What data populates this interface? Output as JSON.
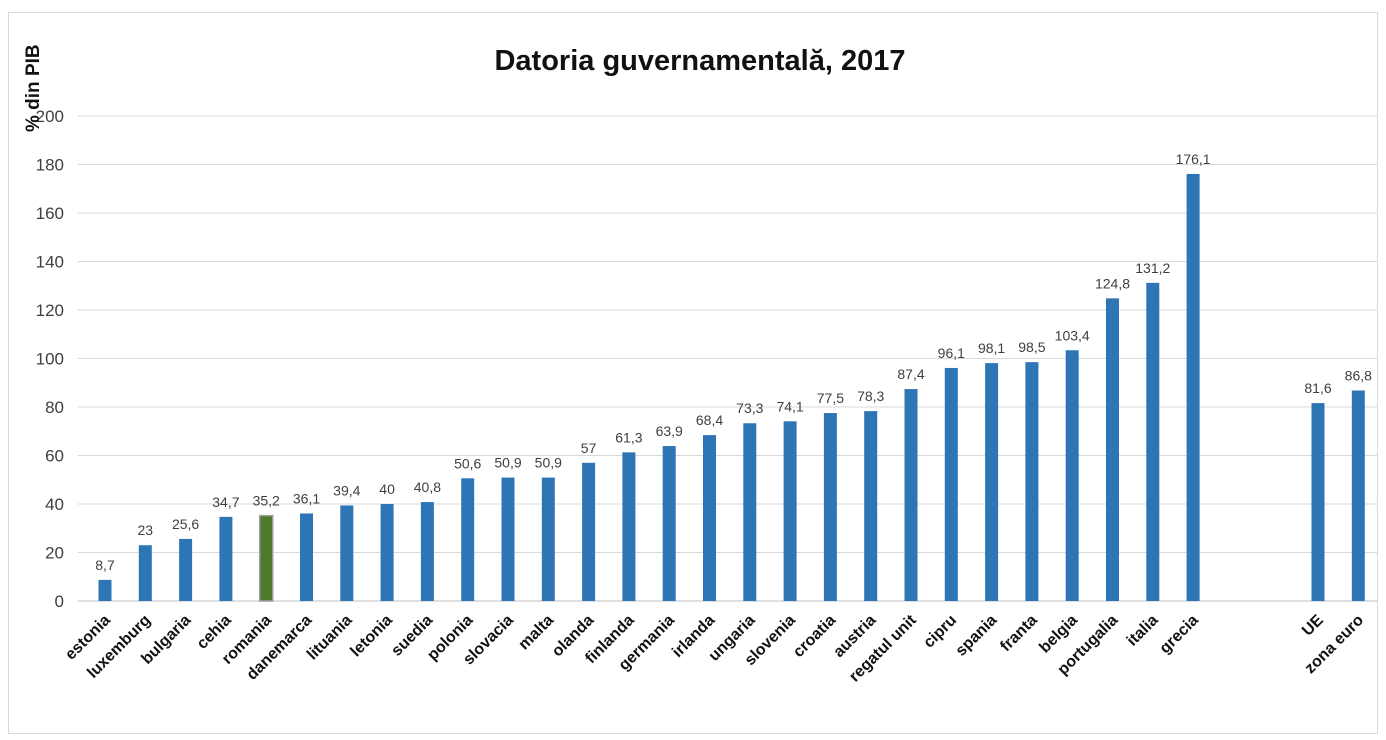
{
  "chart_data": {
    "type": "bar",
    "title": "Datoria guvernamentală, 2017",
    "ylabel": "% din PIB",
    "xlabel": "",
    "ylim": [
      0,
      200
    ],
    "yticks": [
      "0",
      "20",
      "40",
      "60",
      "80",
      "100",
      "120",
      "140",
      "160",
      "180",
      "200"
    ],
    "grid": true,
    "legend": "none",
    "colors": {
      "bar": "#2e75b6",
      "highlight": "#4a7a2a",
      "highlight_border": "#9e9e9e"
    },
    "highlight_category": "romania",
    "categories": [
      "estonia",
      "luxemburg",
      "bulgaria",
      "cehia",
      "romania",
      "danemarca",
      "lituania",
      "letonia",
      "suedia",
      "polonia",
      "slovacia",
      "malta",
      "olanda",
      "finlanda",
      "germania",
      "irlanda",
      "ungaria",
      "slovenia",
      "croatia",
      "austria",
      "regatul unit",
      "cipru",
      "spania",
      "franta",
      "belgia",
      "portugalia",
      "italia",
      "grecia",
      "UE",
      "zona euro"
    ],
    "values": [
      8.7,
      23,
      25.6,
      34.7,
      35.2,
      36.1,
      39.4,
      40,
      40.8,
      50.6,
      50.9,
      50.9,
      57,
      61.3,
      63.9,
      68.4,
      73.3,
      74.1,
      77.5,
      78.3,
      87.4,
      96.1,
      98.1,
      98.5,
      103.4,
      124.8,
      131.2,
      176.1,
      81.6,
      86.8
    ],
    "value_labels": [
      "8,7",
      "23",
      "25,6",
      "34,7",
      "35,2",
      "36,1",
      "39,4",
      "40",
      "40,8",
      "50,6",
      "50,9",
      "50,9",
      "57",
      "61,3",
      "63,9",
      "68,4",
      "73,3",
      "74,1",
      "77,5",
      "78,3",
      "87,4",
      "96,1",
      "98,1",
      "98,5",
      "103,4",
      "124,8",
      "131,2",
      "176,1",
      "81,6",
      "86,8"
    ]
  }
}
